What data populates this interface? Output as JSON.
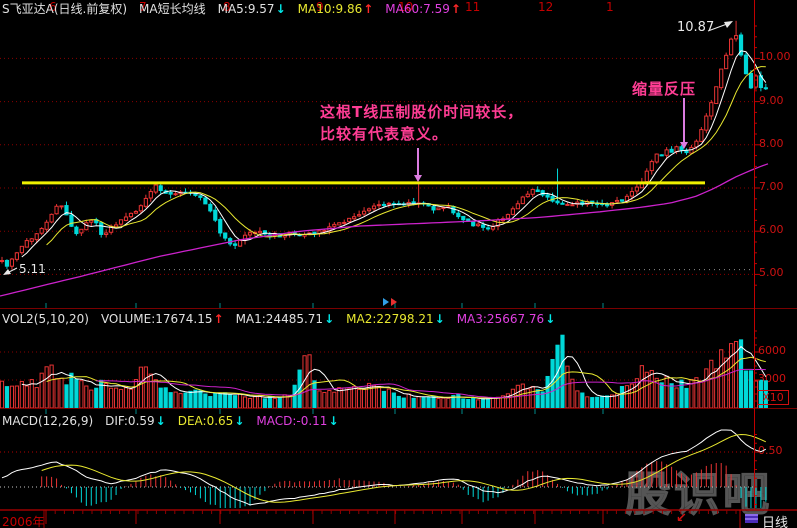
{
  "header": {
    "title": "S飞亚达A(日线.前复权)",
    "subtitle": "MA短长均线",
    "ma5": {
      "label": "MA5:9.57",
      "arrow": "↓"
    },
    "ma10": {
      "label": "MA10:9.86",
      "arrow": "↑"
    },
    "ma60": {
      "label": "MA60:7.59",
      "arrow": "↑"
    }
  },
  "volume_header": {
    "name": "VOL2(5,10,20)",
    "volume": {
      "label": "VOLUME:17674.15",
      "arrow": "↑"
    },
    "ma1": {
      "label": "MA1:24485.71",
      "arrow": "↓"
    },
    "ma2": {
      "label": "MA2:22798.21",
      "arrow": "↓"
    },
    "ma3": {
      "label": "MA3:25667.76",
      "arrow": "↓"
    }
  },
  "macd_header": {
    "name": "MACD(12,26,9)",
    "dif": {
      "label": "DIF:0.59",
      "arrow": "↓"
    },
    "dea": {
      "label": "DEA:0.65",
      "arrow": "↓"
    },
    "macd": {
      "label": "MACD:-0.11",
      "arrow": "↓"
    }
  },
  "main_chart": {
    "y_labels": [
      "10.00",
      "9.00",
      "8.00",
      "7.00",
      "6.00",
      "5.00"
    ],
    "peak_label": "10.87",
    "low_label": "5.11",
    "note_line1": "这根T线压制股价时间较长，",
    "note_line2": "比较有代表意义。",
    "pressure_label": "缩量反压"
  },
  "volume_pane": {
    "y_labels": [
      "6000",
      "3000"
    ],
    "multiplier": "X10"
  },
  "macd_pane": {
    "y_labels": [
      "0.50"
    ]
  },
  "timeline": {
    "year": "2006年",
    "months": [
      "6",
      "7",
      "8",
      "9",
      "10",
      "11",
      "12",
      "1"
    ],
    "month_x": [
      46,
      136,
      220,
      313,
      395,
      462,
      535,
      603
    ],
    "arrow": "↙",
    "period": "日线"
  },
  "watermark": "股识吧",
  "colors": {
    "background": "#000000",
    "up_candle": "#e83333",
    "down_candle": "#00d8d8",
    "ma5": "#ffffff",
    "ma10": "#e8e830",
    "ma60": "#cc22cc",
    "resistance_line": "#f0f000",
    "grid": "#8a0000",
    "axis_text": "#cf1212",
    "annotation_pink": "#ff3d94",
    "annotation_arrow": "#db7ce0"
  },
  "chart_data": {
    "type": "candlestick+volume+macd",
    "title": "S飞亚达A 日线 前复权",
    "x_axis": {
      "year": 2006,
      "month_ticks": [
        6,
        7,
        8,
        9,
        10,
        11,
        12,
        1
      ]
    },
    "price_axis": {
      "levels": [
        10,
        9,
        8,
        7,
        6,
        5
      ],
      "ylim": [
        4.85,
        11.0
      ],
      "low_marker": 5.11,
      "high_marker": 10.87,
      "resistance_level": 7.12
    },
    "volume_axis": {
      "levels": [
        6000,
        3000
      ],
      "multiplier": 10
    },
    "macd_axis": {
      "levels": [
        0.5
      ],
      "zero_line": true
    },
    "candle_step": 4.96,
    "x_start": 2,
    "x_end": 770,
    "seed": 42,
    "close_anchors": [
      [
        0,
        5.35
      ],
      [
        8,
        5.2
      ],
      [
        16,
        5.45
      ],
      [
        24,
        5.7
      ],
      [
        32,
        5.85
      ],
      [
        40,
        6.0
      ],
      [
        48,
        6.3
      ],
      [
        56,
        6.55
      ],
      [
        63,
        6.62
      ],
      [
        70,
        6.1
      ],
      [
        78,
        5.95
      ],
      [
        86,
        6.15
      ],
      [
        94,
        6.3
      ],
      [
        102,
        5.9
      ],
      [
        110,
        6.05
      ],
      [
        118,
        6.2
      ],
      [
        126,
        6.3
      ],
      [
        134,
        6.45
      ],
      [
        142,
        6.6
      ],
      [
        150,
        6.95
      ],
      [
        157,
        7.05
      ],
      [
        164,
        6.9
      ],
      [
        172,
        6.88
      ],
      [
        180,
        6.92
      ],
      [
        188,
        6.9
      ],
      [
        196,
        6.85
      ],
      [
        204,
        6.7
      ],
      [
        212,
        6.4
      ],
      [
        220,
        6.0
      ],
      [
        228,
        5.7
      ],
      [
        236,
        5.62
      ],
      [
        244,
        5.9
      ],
      [
        252,
        5.95
      ],
      [
        260,
        5.98
      ],
      [
        270,
        5.92
      ],
      [
        280,
        5.9
      ],
      [
        290,
        5.95
      ],
      [
        300,
        5.9
      ],
      [
        310,
        5.95
      ],
      [
        320,
        6.02
      ],
      [
        330,
        6.1
      ],
      [
        340,
        6.2
      ],
      [
        350,
        6.3
      ],
      [
        360,
        6.42
      ],
      [
        370,
        6.52
      ],
      [
        380,
        6.62
      ],
      [
        390,
        6.66
      ],
      [
        398,
        6.6
      ],
      [
        406,
        6.64
      ],
      [
        414,
        6.68
      ],
      [
        422,
        6.64
      ],
      [
        430,
        6.55
      ],
      [
        438,
        6.5
      ],
      [
        446,
        6.6
      ],
      [
        454,
        6.45
      ],
      [
        462,
        6.28
      ],
      [
        470,
        6.2
      ],
      [
        478,
        6.12
      ],
      [
        486,
        6.05
      ],
      [
        494,
        6.15
      ],
      [
        502,
        6.3
      ],
      [
        510,
        6.45
      ],
      [
        518,
        6.6
      ],
      [
        526,
        6.85
      ],
      [
        534,
        6.95
      ],
      [
        542,
        6.88
      ],
      [
        550,
        6.75
      ],
      [
        558,
        6.68
      ],
      [
        566,
        6.58
      ],
      [
        574,
        6.62
      ],
      [
        582,
        6.66
      ],
      [
        590,
        6.7
      ],
      [
        598,
        6.66
      ],
      [
        606,
        6.62
      ],
      [
        614,
        6.68
      ],
      [
        622,
        6.74
      ],
      [
        630,
        6.85
      ],
      [
        638,
        7.0
      ],
      [
        645,
        7.3
      ],
      [
        651,
        7.6
      ],
      [
        656,
        7.78
      ],
      [
        661,
        7.72
      ],
      [
        666,
        7.88
      ],
      [
        671,
        7.82
      ],
      [
        676,
        7.95
      ],
      [
        681,
        7.85
      ],
      [
        686,
        7.8
      ],
      [
        691,
        7.88
      ],
      [
        696,
        8.05
      ],
      [
        701,
        8.3
      ],
      [
        706,
        8.6
      ],
      [
        711,
        8.95
      ],
      [
        716,
        9.3
      ],
      [
        721,
        9.7
      ],
      [
        726,
        10.1
      ],
      [
        731,
        10.45
      ],
      [
        735,
        10.6
      ],
      [
        739,
        10.25
      ],
      [
        743,
        9.9
      ],
      [
        747,
        9.55
      ],
      [
        751,
        9.35
      ],
      [
        757,
        9.6
      ],
      [
        763,
        9.2
      ],
      [
        770,
        9.45
      ]
    ],
    "ma60_anchors": [
      [
        0,
        4.5
      ],
      [
        80,
        4.95
      ],
      [
        160,
        5.42
      ],
      [
        240,
        5.8
      ],
      [
        300,
        6.0
      ],
      [
        360,
        6.12
      ],
      [
        420,
        6.18
      ],
      [
        480,
        6.24
      ],
      [
        540,
        6.32
      ],
      [
        600,
        6.45
      ],
      [
        640,
        6.55
      ],
      [
        670,
        6.65
      ],
      [
        695,
        6.8
      ],
      [
        715,
        7.0
      ],
      [
        735,
        7.25
      ],
      [
        755,
        7.45
      ],
      [
        775,
        7.62
      ]
    ],
    "candle_overrides": {
      "high": [
        [
          157,
          7.14
        ],
        [
          418,
          7.13
        ],
        [
          558,
          7.45
        ],
        [
          735,
          10.87
        ]
      ],
      "low": [
        [
          10,
          5.11
        ]
      ]
    },
    "volume_anchors": [
      [
        0,
        2300
      ],
      [
        12,
        2700
      ],
      [
        24,
        2200
      ],
      [
        36,
        2600
      ],
      [
        50,
        4600
      ],
      [
        62,
        2500
      ],
      [
        76,
        3300
      ],
      [
        90,
        2100
      ],
      [
        104,
        2500
      ],
      [
        118,
        2000
      ],
      [
        132,
        2300
      ],
      [
        146,
        4400
      ],
      [
        158,
        2100
      ],
      [
        172,
        1600
      ],
      [
        186,
        1500
      ],
      [
        200,
        1900
      ],
      [
        214,
        1400
      ],
      [
        228,
        1800
      ],
      [
        242,
        1300
      ],
      [
        256,
        1200
      ],
      [
        272,
        1100
      ],
      [
        290,
        1400
      ],
      [
        307,
        5600
      ],
      [
        320,
        1900
      ],
      [
        334,
        1400
      ],
      [
        348,
        2400
      ],
      [
        362,
        1700
      ],
      [
        376,
        2600
      ],
      [
        390,
        1600
      ],
      [
        404,
        1300
      ],
      [
        418,
        1200
      ],
      [
        432,
        1000
      ],
      [
        446,
        950
      ],
      [
        460,
        1250
      ],
      [
        474,
        850
      ],
      [
        488,
        1000
      ],
      [
        502,
        1300
      ],
      [
        516,
        2000
      ],
      [
        530,
        2300
      ],
      [
        544,
        1600
      ],
      [
        560,
        7800
      ],
      [
        574,
        2500
      ],
      [
        588,
        1400
      ],
      [
        602,
        1100
      ],
      [
        616,
        1500
      ],
      [
        630,
        2300
      ],
      [
        644,
        4300
      ],
      [
        656,
        3500
      ],
      [
        668,
        2800
      ],
      [
        680,
        2400
      ],
      [
        692,
        2700
      ],
      [
        704,
        3700
      ],
      [
        714,
        4500
      ],
      [
        724,
        5600
      ],
      [
        732,
        6900
      ],
      [
        740,
        7300
      ],
      [
        746,
        4900
      ],
      [
        752,
        3900
      ],
      [
        760,
        3100
      ],
      [
        770,
        2700
      ]
    ],
    "volume_overrides": [
      [
        50,
        4600
      ],
      [
        146,
        4400
      ],
      [
        307,
        5600
      ],
      [
        560,
        7800
      ],
      [
        732,
        6900
      ],
      [
        740,
        7300
      ]
    ],
    "dif_anchors": [
      [
        0,
        0.12
      ],
      [
        20,
        0.25
      ],
      [
        40,
        0.3
      ],
      [
        55,
        0.36
      ],
      [
        70,
        0.28
      ],
      [
        90,
        0.12
      ],
      [
        110,
        0.05
      ],
      [
        130,
        0.1
      ],
      [
        150,
        0.2
      ],
      [
        165,
        0.25
      ],
      [
        185,
        0.2
      ],
      [
        200,
        0.12
      ],
      [
        215,
        0.0
      ],
      [
        235,
        -0.18
      ],
      [
        250,
        -0.25
      ],
      [
        265,
        -0.22
      ],
      [
        280,
        -0.18
      ],
      [
        300,
        -0.15
      ],
      [
        320,
        -0.1
      ],
      [
        340,
        -0.04
      ],
      [
        360,
        0.0
      ],
      [
        380,
        0.04
      ],
      [
        400,
        0.02
      ],
      [
        420,
        0.05
      ],
      [
        440,
        0.1
      ],
      [
        455,
        0.12
      ],
      [
        470,
        0.02
      ],
      [
        485,
        -0.06
      ],
      [
        500,
        -0.08
      ],
      [
        515,
        -0.02
      ],
      [
        530,
        0.1
      ],
      [
        545,
        0.16
      ],
      [
        558,
        0.13
      ],
      [
        572,
        0.08
      ],
      [
        585,
        0.04
      ],
      [
        600,
        0.02
      ],
      [
        615,
        0.05
      ],
      [
        630,
        0.12
      ],
      [
        645,
        0.28
      ],
      [
        660,
        0.42
      ],
      [
        672,
        0.48
      ],
      [
        685,
        0.5
      ],
      [
        695,
        0.58
      ],
      [
        705,
        0.68
      ],
      [
        715,
        0.78
      ],
      [
        725,
        0.84
      ],
      [
        733,
        0.8
      ],
      [
        740,
        0.68
      ],
      [
        746,
        0.6
      ],
      [
        752,
        0.55
      ],
      [
        760,
        0.5
      ],
      [
        770,
        0.56
      ]
    ]
  }
}
